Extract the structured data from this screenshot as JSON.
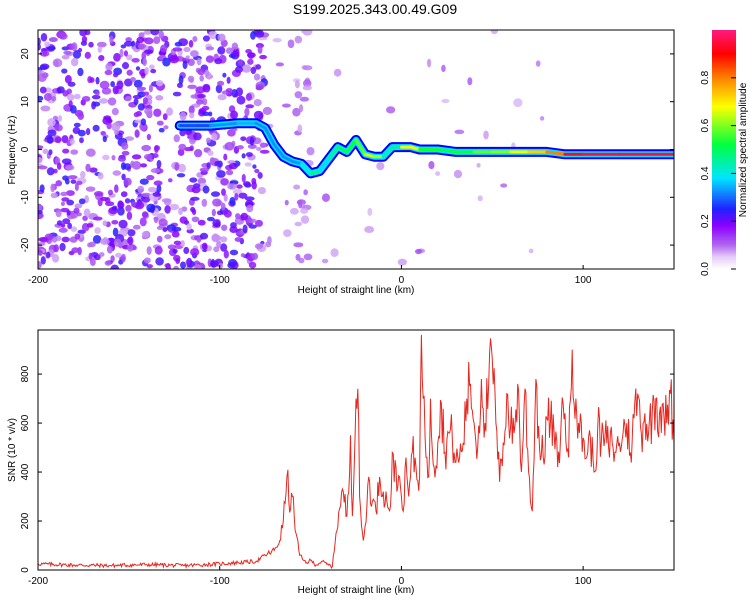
{
  "title": "S199.2025.343.00.49.G09",
  "colors": {
    "series": "#e8261e",
    "frame": "#000000",
    "background": "#ffffff"
  },
  "chart_data": [
    {
      "type": "heatmap",
      "xlabel": "Height of straight line (km)",
      "ylabel": "Frequency (Hz)",
      "xlim": [
        -200,
        150
      ],
      "ylim": [
        -25,
        25
      ],
      "xticks": [
        -200,
        -100,
        0,
        100
      ],
      "yticks": [
        20,
        10,
        0,
        -10,
        -20
      ],
      "colorbar": {
        "label": "Normalized spectral amplitude",
        "range": [
          0,
          1
        ],
        "ticks": [
          0.0,
          0.2,
          0.4,
          0.6,
          0.8
        ],
        "colormap": [
          "#ffffff",
          "#d9b8f5",
          "#8b00ff",
          "#0000ff",
          "#00e5ff",
          "#00ff00",
          "#ffff00",
          "#ff8000",
          "#ff0000",
          "#ff1a80"
        ]
      },
      "ridge": {
        "x": [
          -122,
          -112,
          -105,
          -90,
          -80,
          -75,
          -70,
          -65,
          -60,
          -55,
          -50,
          -45,
          -40,
          -35,
          -30,
          -25,
          -20,
          -15,
          -10,
          -5,
          0,
          5,
          10,
          20,
          30,
          40,
          50,
          60,
          70,
          80,
          90,
          100,
          120,
          150
        ],
        "y": [
          5,
          5,
          5,
          5.5,
          5.5,
          4.5,
          1,
          -1.5,
          -2.5,
          -3,
          -5,
          -4.5,
          -2,
          0.5,
          -0.5,
          2,
          -1,
          -1.5,
          -1.5,
          0.5,
          0.5,
          0.5,
          0,
          0,
          -0.5,
          -0.5,
          -0.5,
          -0.5,
          -0.5,
          -0.5,
          -1,
          -1,
          -1,
          -1
        ],
        "amplitude": [
          0.3,
          0.25,
          0.3,
          0.35,
          0.35,
          0.3,
          0.35,
          0.3,
          0.35,
          0.3,
          0.5,
          0.45,
          0.3,
          0.6,
          0.4,
          0.65,
          0.5,
          0.8,
          0.45,
          0.4,
          0.5,
          0.85,
          0.5,
          0.55,
          0.5,
          0.55,
          0.6,
          0.6,
          0.75,
          0.7,
          0.9,
          0.95,
          0.95,
          0.95
        ]
      }
    },
    {
      "type": "line",
      "xlabel": "Height of straight line (km)",
      "ylabel": "SNR (10 * v/v)",
      "xlim": [
        -200,
        150
      ],
      "ylim": [
        0,
        980
      ],
      "xticks": [
        -200,
        -100,
        0,
        100
      ],
      "yticks": [
        0,
        200,
        400,
        600,
        800
      ],
      "series": [
        {
          "x": [
            -200,
            -180,
            -160,
            -140,
            -120,
            -100,
            -90,
            -80,
            -75,
            -70,
            -67,
            -65,
            -63,
            -61,
            -60,
            -58,
            -56,
            -54,
            -52,
            -50,
            -47,
            -44,
            -40,
            -38,
            -36,
            -34,
            -32,
            -30,
            -28,
            -27,
            -26,
            -25,
            -24,
            -23,
            -22,
            -21,
            -20,
            -19,
            -18,
            -16,
            -14,
            -12,
            -10,
            -8,
            -6,
            -5,
            -4,
            -3,
            -2,
            -1,
            0,
            1,
            2,
            4,
            6,
            8,
            10,
            11,
            12,
            13,
            14,
            15,
            16,
            18,
            20,
            22,
            24,
            26,
            28,
            30,
            32,
            34,
            36,
            38,
            40,
            42,
            44,
            46,
            48,
            50,
            52,
            54,
            56,
            58,
            60,
            62,
            64,
            66,
            68,
            70,
            72,
            74,
            76,
            78,
            80,
            82,
            84,
            86,
            88,
            90,
            92,
            94,
            96,
            98,
            100,
            102,
            104,
            106,
            108,
            110,
            112,
            114,
            116,
            118,
            120,
            122,
            124,
            126,
            128,
            130,
            132,
            134,
            136,
            138,
            140,
            142,
            144,
            146,
            148,
            150
          ],
          "y": [
            25,
            20,
            18,
            22,
            18,
            25,
            30,
            35,
            60,
            80,
            120,
            200,
            380,
            250,
            300,
            150,
            60,
            40,
            30,
            40,
            20,
            35,
            20,
            15,
            150,
            250,
            320,
            220,
            550,
            220,
            420,
            700,
            740,
            300,
            180,
            120,
            180,
            260,
            380,
            280,
            240,
            380,
            320,
            280,
            260,
            480,
            360,
            420,
            340,
            380,
            300,
            240,
            420,
            300,
            480,
            420,
            380,
            960,
            700,
            540,
            460,
            380,
            700,
            420,
            520,
            680,
            480,
            560,
            540,
            440,
            460,
            520,
            700,
            760,
            600,
            500,
            780,
            600,
            760,
            860,
            600,
            360,
            520,
            720,
            580,
            560,
            760,
            400,
            740,
            400,
            240,
            780,
            500,
            460,
            620,
            600,
            560,
            420,
            620,
            640,
            460,
            900,
            700,
            560,
            540,
            460,
            540,
            400,
            580,
            520,
            540,
            500,
            520,
            480,
            520,
            560,
            600,
            480,
            620,
            720,
            560,
            640,
            560,
            640,
            700,
            640,
            680,
            600,
            720,
            520
          ]
        }
      ]
    }
  ]
}
